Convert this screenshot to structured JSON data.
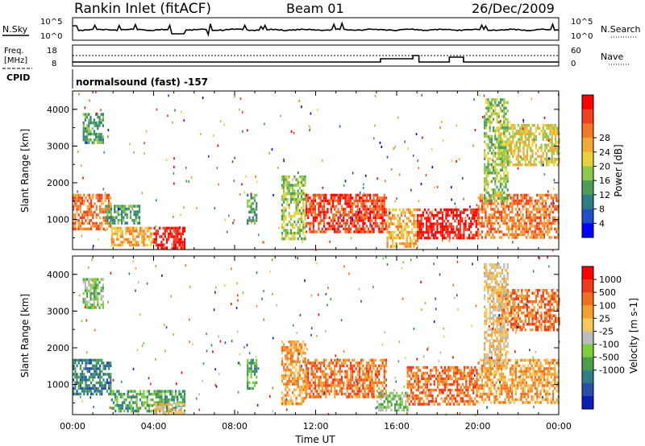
{
  "header": {
    "station": "Rankin Inlet (fitACF)",
    "beam": "Beam 01",
    "date": "26/Dec/2009"
  },
  "labels": {
    "nsky": "N.Sky",
    "nsearch": "N.Search",
    "freq": "Freq.",
    "freq_unit": "[MHz]",
    "nave": "Nave",
    "cpid": "CPID",
    "cpid_value": "normalsound (fast) -157",
    "xlabel": "Time UT",
    "ylabel": "Slant Range [km]"
  },
  "noise_panel": {
    "left_ticks": [
      "10^5",
      "10^0"
    ],
    "right_ticks": [
      "10^5",
      "10^0"
    ]
  },
  "freq_panel": {
    "left_ticks": [
      "18",
      "8"
    ],
    "right_ticks": [
      "60",
      "0"
    ]
  },
  "chart_data": [
    {
      "type": "heatmap",
      "title": "",
      "xlabel": "",
      "ylabel": "Slant Range [km]",
      "x_ticks": [
        "00:00",
        "04:00",
        "08:00",
        "12:00",
        "16:00",
        "20:00",
        "00:00"
      ],
      "y_ticks": [
        "1000",
        "2000",
        "3000",
        "4000"
      ],
      "ylim": [
        180,
        4500
      ],
      "colorbar": {
        "label": "Power [dB]",
        "ticks": [
          "4",
          "8",
          "12",
          "16",
          "20",
          "24",
          "28"
        ],
        "colors": [
          "#0000ff",
          "#1e50c8",
          "#2d7f84",
          "#4a9e5a",
          "#8fc84b",
          "#e8d23a",
          "#f4a83a",
          "#f47a26",
          "#f04020",
          "#ff0000"
        ]
      },
      "regions": [
        {
          "t0": 0.0,
          "t1": 1.9,
          "r0": 750,
          "r1": 1700,
          "level": 7
        },
        {
          "t0": 1.9,
          "t1": 4.0,
          "r0": 300,
          "r1": 800,
          "level": 6
        },
        {
          "t0": 4.0,
          "t1": 5.5,
          "r0": 200,
          "r1": 800,
          "level": 9
        },
        {
          "t0": 1.6,
          "t1": 3.3,
          "r0": 900,
          "r1": 1400,
          "level": 3
        },
        {
          "t0": 8.6,
          "t1": 9.1,
          "r0": 900,
          "r1": 1700,
          "level": 3
        },
        {
          "t0": 10.3,
          "t1": 11.5,
          "r0": 500,
          "r1": 2200,
          "level": 4
        },
        {
          "t0": 11.5,
          "t1": 15.5,
          "r0": 700,
          "r1": 1700,
          "level": 8
        },
        {
          "t0": 15.5,
          "t1": 17.0,
          "r0": 300,
          "r1": 1300,
          "level": 6
        },
        {
          "t0": 17.0,
          "t1": 20.0,
          "r0": 500,
          "r1": 1300,
          "level": 9
        },
        {
          "t0": 20.0,
          "t1": 24.0,
          "r0": 500,
          "r1": 1700,
          "level": 7
        },
        {
          "t0": 0.5,
          "t1": 1.5,
          "r0": 3100,
          "r1": 3900,
          "level": 3
        },
        {
          "t0": 21.0,
          "t1": 24.0,
          "r0": 2500,
          "r1": 3600,
          "level": 5
        },
        {
          "t0": 20.3,
          "t1": 21.5,
          "r0": 1500,
          "r1": 4300,
          "level": 4
        }
      ]
    },
    {
      "type": "heatmap",
      "title": "",
      "xlabel": "Time UT",
      "ylabel": "Slant Range [km]",
      "x_ticks": [
        "00:00",
        "04:00",
        "08:00",
        "12:00",
        "16:00",
        "20:00",
        "00:00"
      ],
      "y_ticks": [
        "1000",
        "2000",
        "3000",
        "4000"
      ],
      "ylim": [
        180,
        4500
      ],
      "colorbar": {
        "label": "Velocity [m s-1]",
        "ticks": [
          "1000",
          "500",
          "100",
          "25",
          "-25",
          "-100",
          "-500",
          "-1000"
        ],
        "colors": [
          "#0b1fb5",
          "#2a4fa8",
          "#2d7f84",
          "#4aa04a",
          "#7dcf3a",
          "#bcbcbc",
          "#f4c85a",
          "#f4a030",
          "#f07020",
          "#f03a1a",
          "#ff0000"
        ]
      },
      "regions": [
        {
          "t0": 0.0,
          "t1": 1.9,
          "r0": 750,
          "r1": 1700,
          "level": 2
        },
        {
          "t0": 1.9,
          "t1": 5.5,
          "r0": 250,
          "r1": 850,
          "level": 3
        },
        {
          "t0": 4.0,
          "t1": 5.5,
          "r0": 200,
          "r1": 500,
          "level": 6
        },
        {
          "t0": 8.6,
          "t1": 9.1,
          "r0": 900,
          "r1": 1700,
          "level": 3
        },
        {
          "t0": 10.3,
          "t1": 11.5,
          "r0": 500,
          "r1": 2200,
          "level": 7
        },
        {
          "t0": 11.5,
          "t1": 15.5,
          "r0": 700,
          "r1": 1700,
          "level": 8
        },
        {
          "t0": 15.0,
          "t1": 16.5,
          "r0": 300,
          "r1": 800,
          "level": 4
        },
        {
          "t0": 16.5,
          "t1": 20.0,
          "r0": 500,
          "r1": 1500,
          "level": 8
        },
        {
          "t0": 20.0,
          "t1": 24.0,
          "r0": 500,
          "r1": 1700,
          "level": 7
        },
        {
          "t0": 0.5,
          "t1": 1.5,
          "r0": 3100,
          "r1": 3900,
          "level": 4
        },
        {
          "t0": 21.0,
          "t1": 24.0,
          "r0": 2500,
          "r1": 3600,
          "level": 8
        },
        {
          "t0": 20.3,
          "t1": 21.5,
          "r0": 1500,
          "r1": 4300,
          "level": 6
        }
      ]
    }
  ]
}
